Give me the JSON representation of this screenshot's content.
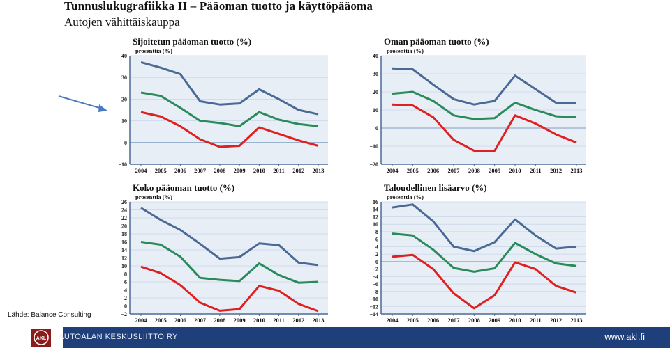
{
  "header": {
    "title": "Tunnuslukugrafiikka II – Pääoman tuotto ja käyttöpääoma",
    "subtitle": "Autojen vähittäiskauppa"
  },
  "source": "Lähde: Balance Consulting",
  "footer": {
    "logo_text": "AKL",
    "org": "AUTOALAN KESKUSLIITTO RY",
    "url": "www.akl.fi"
  },
  "colors": {
    "series": [
      "#4a6a96",
      "#2a8a5a",
      "#e02020"
    ],
    "plot_bg": "#e8eef6",
    "footer": "#1f3f7a",
    "arrow": "#4a7ac0"
  },
  "chart_data": [
    {
      "type": "line",
      "title": "Sijoitetun pääoman tuotto (%)",
      "unit": "prosenttia (%)",
      "x": [
        "2004",
        "2005",
        "2006",
        "2007",
        "2008",
        "2009",
        "2010",
        "2011",
        "2012",
        "2013"
      ],
      "ylim": [
        -10,
        40
      ],
      "yticks": [
        -10,
        0,
        10,
        20,
        30,
        40
      ],
      "series": [
        {
          "values": [
            37,
            34.5,
            31.5,
            19,
            17.5,
            18,
            24.5,
            20,
            15,
            13
          ]
        },
        {
          "values": [
            23,
            21.5,
            16,
            10,
            9,
            7.5,
            14,
            10.5,
            8.5,
            7.5
          ]
        },
        {
          "values": [
            14,
            12,
            7.5,
            1.5,
            -2,
            -1.5,
            7,
            4,
            1,
            -1.5
          ]
        }
      ]
    },
    {
      "type": "line",
      "title": "Oman pääoman tuotto (%)",
      "unit": "prosenttia (%)",
      "x": [
        "2004",
        "2005",
        "2006",
        "2007",
        "2008",
        "2009",
        "2010",
        "2011",
        "2012",
        "2013"
      ],
      "ylim": [
        -20,
        40
      ],
      "yticks": [
        -20,
        -10,
        0,
        10,
        20,
        30,
        40
      ],
      "series": [
        {
          "values": [
            33,
            32.5,
            24,
            16,
            13,
            15,
            29,
            21.5,
            14,
            14
          ]
        },
        {
          "values": [
            19,
            20,
            15,
            7,
            5,
            5.5,
            14,
            10,
            6.5,
            6
          ]
        },
        {
          "values": [
            13,
            12.5,
            6,
            -6.5,
            -12.5,
            -12.5,
            7,
            2.5,
            -3.5,
            -8
          ]
        }
      ]
    },
    {
      "type": "line",
      "title": "Koko pääoman tuotto (%)",
      "unit": "prosenttia (%)",
      "x": [
        "2004",
        "2005",
        "2006",
        "2007",
        "2008",
        "2009",
        "2010",
        "2011",
        "2012",
        "2013"
      ],
      "ylim": [
        -2,
        26
      ],
      "yticks": [
        -2,
        0,
        2,
        4,
        6,
        8,
        10,
        12,
        14,
        16,
        18,
        20,
        22,
        24,
        26
      ],
      "series": [
        {
          "values": [
            24.5,
            21.5,
            19,
            15.5,
            11.8,
            12.2,
            15.6,
            15.2,
            10.8,
            10.2
          ]
        },
        {
          "values": [
            16,
            15.3,
            12.3,
            7,
            6.5,
            6.2,
            10.6,
            7.7,
            5.8,
            6
          ]
        },
        {
          "values": [
            9.8,
            8.2,
            5.2,
            0.8,
            -1.2,
            -0.8,
            5,
            3.8,
            0.5,
            -1.3
          ]
        }
      ]
    },
    {
      "type": "line",
      "title": "Taloudellinen lisäarvo (%)",
      "unit": "prosenttia (%)",
      "x": [
        "2004",
        "2005",
        "2006",
        "2007",
        "2008",
        "2009",
        "2010",
        "2011",
        "2012",
        "2013"
      ],
      "ylim": [
        -14,
        16
      ],
      "yticks": [
        -14,
        -12,
        -10,
        -8,
        -6,
        -4,
        -2,
        0,
        2,
        4,
        6,
        8,
        10,
        12,
        14,
        16
      ],
      "series": [
        {
          "values": [
            14.5,
            15.3,
            10.8,
            4,
            2.8,
            5.2,
            11.3,
            7,
            3.5,
            4
          ]
        },
        {
          "values": [
            7.5,
            7,
            3.2,
            -1.7,
            -2.7,
            -1.8,
            5,
            2,
            -0.5,
            -1.2
          ]
        },
        {
          "values": [
            1.3,
            1.8,
            -2,
            -8.5,
            -12.5,
            -9,
            -0.2,
            -2,
            -6.5,
            -8.3
          ]
        }
      ]
    }
  ]
}
